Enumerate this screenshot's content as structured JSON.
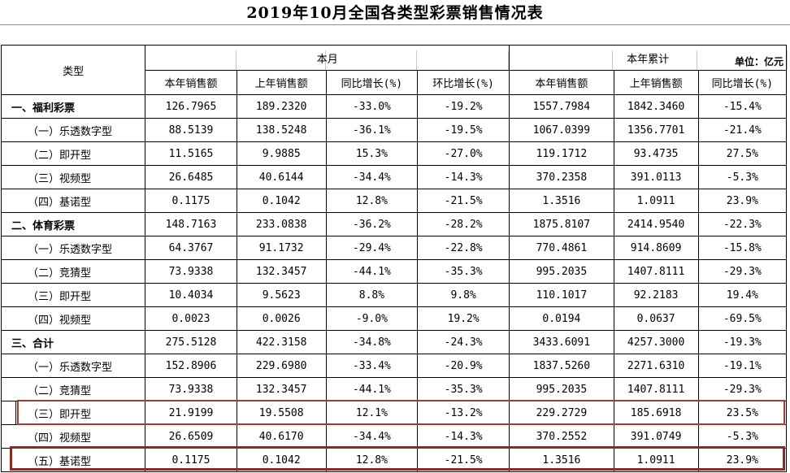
{
  "title": "2019年10月全国各类型彩票销售情况表",
  "unit_label": "单位：亿元",
  "table": {
    "col_type": "类型",
    "col_group_month": "本月",
    "col_group_ytd": "本年累计",
    "columns_month": [
      "本年销售额",
      "上年销售额",
      "同比增长(%)",
      "环比增长(%)"
    ],
    "columns_ytd": [
      "本年销售额",
      "上年销售额",
      "同比增长(%)"
    ],
    "rows": [
      {
        "label": "一、福利彩票",
        "bold": true,
        "highlighted": false,
        "values": [
          "126.7965",
          "189.2320",
          "-33.0%",
          "-19.2%",
          "1557.7984",
          "1842.3460",
          "-15.4%"
        ]
      },
      {
        "label": "（一）乐透数字型",
        "bold": false,
        "highlighted": false,
        "values": [
          "88.5139",
          "138.5248",
          "-36.1%",
          "-19.5%",
          "1067.0399",
          "1356.7701",
          "-21.4%"
        ]
      },
      {
        "label": "（二）即开型",
        "bold": false,
        "highlighted": false,
        "values": [
          "11.5165",
          "9.9885",
          "15.3%",
          "-27.0%",
          "119.1712",
          "93.4735",
          "27.5%"
        ]
      },
      {
        "label": "（三）视频型",
        "bold": false,
        "highlighted": false,
        "values": [
          "26.6485",
          "40.6144",
          "-34.4%",
          "-14.3%",
          "370.2358",
          "391.0113",
          "-5.3%"
        ]
      },
      {
        "label": "（四）基诺型",
        "bold": false,
        "highlighted": false,
        "values": [
          "0.1175",
          "0.1042",
          "12.8%",
          "-21.5%",
          "1.3516",
          "1.0911",
          "23.9%"
        ]
      },
      {
        "label": "二、体育彩票",
        "bold": true,
        "highlighted": false,
        "values": [
          "148.7163",
          "233.0838",
          "-36.2%",
          "-28.2%",
          "1875.8107",
          "2414.9540",
          "-22.3%"
        ]
      },
      {
        "label": "（一）乐透数字型",
        "bold": false,
        "highlighted": false,
        "values": [
          "64.3767",
          "91.1732",
          "-29.4%",
          "-22.8%",
          "770.4861",
          "914.8609",
          "-15.8%"
        ]
      },
      {
        "label": "（二）竞猜型",
        "bold": false,
        "highlighted": false,
        "values": [
          "73.9338",
          "132.3457",
          "-44.1%",
          "-35.3%",
          "995.2035",
          "1407.8111",
          "-29.3%"
        ]
      },
      {
        "label": "（三）即开型",
        "bold": false,
        "highlighted": false,
        "values": [
          "10.4034",
          "9.5623",
          "8.8%",
          "9.8%",
          "110.1017",
          "92.2183",
          "19.4%"
        ]
      },
      {
        "label": "（四）视频型",
        "bold": false,
        "highlighted": false,
        "values": [
          "0.0023",
          "0.0026",
          "-9.0%",
          "19.2%",
          "0.0194",
          "0.0637",
          "-69.5%"
        ]
      },
      {
        "label": "三、合计",
        "bold": true,
        "highlighted": false,
        "values": [
          "275.5128",
          "422.3158",
          "-34.8%",
          "-24.3%",
          "3433.6091",
          "4257.3000",
          "-19.3%"
        ]
      },
      {
        "label": "（一）乐透数字型",
        "bold": false,
        "highlighted": false,
        "values": [
          "152.8906",
          "229.6980",
          "-33.4%",
          "-20.9%",
          "1837.5260",
          "2271.6310",
          "-19.1%"
        ]
      },
      {
        "label": "（二）竞猜型",
        "bold": false,
        "highlighted": false,
        "values": [
          "73.9338",
          "132.3457",
          "-44.1%",
          "-35.3%",
          "995.2035",
          "1407.8111",
          "-29.3%"
        ]
      },
      {
        "label": "（三）即开型",
        "bold": false,
        "highlighted": true,
        "values": [
          "21.9199",
          "19.5508",
          "12.1%",
          "-13.2%",
          "229.2729",
          "185.6918",
          "23.5%"
        ]
      },
      {
        "label": "（四）视频型",
        "bold": false,
        "highlighted": false,
        "values": [
          "26.6509",
          "40.6170",
          "-34.4%",
          "-14.3%",
          "370.2552",
          "391.0749",
          "-5.3%"
        ]
      },
      {
        "label": "（五）基诺型",
        "bold": false,
        "highlighted": true,
        "values": [
          "0.1175",
          "0.1042",
          "12.8%",
          "-21.5%",
          "1.3516",
          "1.0911",
          "23.9%"
        ]
      }
    ]
  },
  "highlight_colors": {
    "box1": "#a53c33",
    "box2": "#8b2a22"
  }
}
